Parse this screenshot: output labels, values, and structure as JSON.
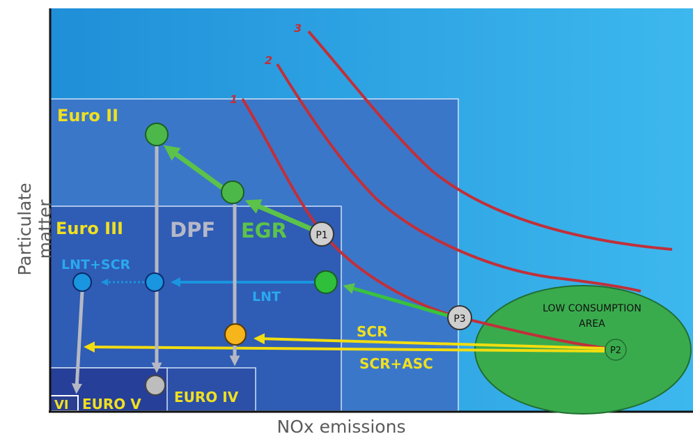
{
  "axes": {
    "x_label": "NOx emissions",
    "y_label": "Particulate matter"
  },
  "regions": {
    "euro_ii": "Euro II",
    "euro_iii": "Euro III",
    "euro_iv": "EURO IV",
    "euro_v": "EURO V",
    "euro_vi": "VI",
    "low_consumption_line1": "LOW CONSUMPTION",
    "low_consumption_line2": "AREA"
  },
  "technologies": {
    "dpf": "DPF",
    "egr": "EGR",
    "lnt": "LNT",
    "lnt_scr": "LNT+SCR",
    "scr": "SCR",
    "scr_asc": "SCR+ASC"
  },
  "points": {
    "p1": "P1",
    "p2": "P2",
    "p3": "P3"
  },
  "curves": {
    "c1": "1",
    "c2": "2",
    "c3": "3"
  },
  "colors": {
    "sky": "#33aee6",
    "euro_ii_box": "#3b77c9",
    "euro_iii_box": "#2f5cb4",
    "euro_iv_box": "#2c4fa8",
    "euro_v_box": "#263f98",
    "curve_red": "#c0303a",
    "green_arrow": "#5cc24a",
    "blue_arrow": "#1a95e0",
    "yellow_arrow": "#f2dd10",
    "grey_arrow": "#b5b8c4",
    "label_yellow": "#f0e020",
    "low_consumption_fill": "#3aab4d"
  }
}
